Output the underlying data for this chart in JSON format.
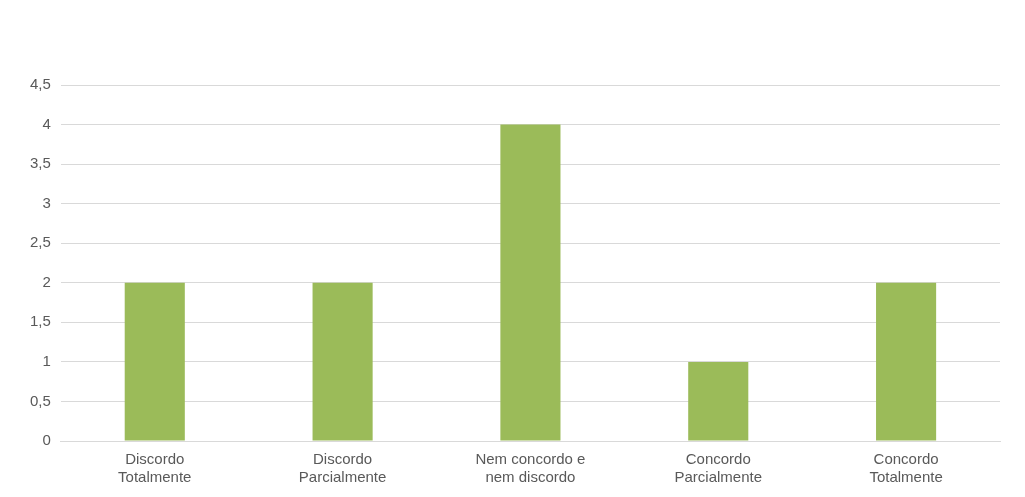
{
  "chart_data": {
    "type": "bar",
    "categories": [
      "Discordo Totalmente",
      "Discordo Parcialmente",
      "Nem concordo e nem discordo",
      "Concordo Parcialmente",
      "Concordo Totalmente"
    ],
    "values": [
      2,
      2,
      4,
      1,
      2
    ],
    "color": "#9bbb59",
    "ylim": [
      0,
      4.5
    ],
    "yticks": [
      0,
      {
        "value": 0.5,
        "label": "0,5"
      },
      1,
      {
        "value": 1.5,
        "label": "1,5"
      },
      2,
      {
        "value": 2.5,
        "label": "2,5"
      },
      3,
      {
        "value": 3.5,
        "label": "3,5"
      },
      4,
      {
        "value": 4.5,
        "label": "4,5"
      }
    ],
    "grid": "y",
    "legend": false
  }
}
